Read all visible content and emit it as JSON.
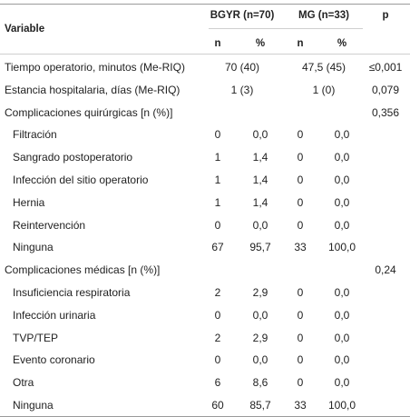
{
  "header": {
    "variable": "Variable",
    "group1": "BGYR (n=70)",
    "group2": "MG (n=33)",
    "p": "p",
    "n": "n",
    "pct": "%"
  },
  "rows": [
    {
      "type": "span",
      "label": "Tiempo operatorio, minutos (Me-RIQ)",
      "g1": "70 (40)",
      "g2": "47,5 (45)",
      "p": "≤0,001"
    },
    {
      "type": "span",
      "label": "Estancia hospitalaria, días (Me-RIQ)",
      "g1": "1 (3)",
      "g2": "1 (0)",
      "p": "0,079"
    },
    {
      "type": "group",
      "label": "Complicaciones quirúrgicas [n (%)]",
      "p": "0,356"
    },
    {
      "type": "item",
      "label": "Filtración",
      "n1": "0",
      "p1": "0,0",
      "n2": "0",
      "p2": "0,0"
    },
    {
      "type": "item",
      "label": "Sangrado postoperatorio",
      "n1": "1",
      "p1": "1,4",
      "n2": "0",
      "p2": "0,0"
    },
    {
      "type": "item",
      "label": "Infección del sitio operatorio",
      "n1": "1",
      "p1": "1,4",
      "n2": "0",
      "p2": "0,0"
    },
    {
      "type": "item",
      "label": "Hernia",
      "n1": "1",
      "p1": "1,4",
      "n2": "0",
      "p2": "0,0"
    },
    {
      "type": "item",
      "label": "Reintervención",
      "n1": "0",
      "p1": "0,0",
      "n2": "0",
      "p2": "0,0"
    },
    {
      "type": "item",
      "label": "Ninguna",
      "n1": "67",
      "p1": "95,7",
      "n2": "33",
      "p2": "100,0"
    },
    {
      "type": "group",
      "label": "Complicaciones médicas [n (%)]",
      "p": "0,24"
    },
    {
      "type": "item",
      "label": "Insuficiencia respiratoria",
      "n1": "2",
      "p1": "2,9",
      "n2": "0",
      "p2": "0,0"
    },
    {
      "type": "item",
      "label": "Infección urinaria",
      "n1": "0",
      "p1": "0,0",
      "n2": "0",
      "p2": "0,0"
    },
    {
      "type": "item",
      "label": "TVP/TEP",
      "n1": "2",
      "p1": "2,9",
      "n2": "0",
      "p2": "0,0"
    },
    {
      "type": "item",
      "label": "Evento coronario",
      "n1": "0",
      "p1": "0,0",
      "n2": "0",
      "p2": "0,0"
    },
    {
      "type": "item",
      "label": "Otra",
      "n1": "6",
      "p1": "8,6",
      "n2": "0",
      "p2": "0,0"
    },
    {
      "type": "item",
      "label": "Ninguna",
      "n1": "60",
      "p1": "85,7",
      "n2": "33",
      "p2": "100,0"
    }
  ]
}
